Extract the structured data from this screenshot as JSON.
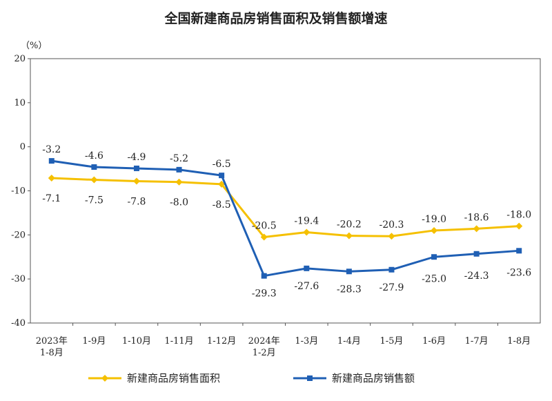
{
  "chart_data": {
    "type": "line",
    "title": "全国新建商品房销售面积及销售额增速",
    "unit_label": "（%）",
    "ylim": [
      -40,
      20
    ],
    "yticks": [
      "20",
      "10",
      "0",
      "-10",
      "-20",
      "-30",
      "-40"
    ],
    "categories": [
      [
        "2023年",
        "1-8月"
      ],
      [
        "1-9月"
      ],
      [
        "1-10月"
      ],
      [
        "1-11月"
      ],
      [
        "1-12月"
      ],
      [
        "2024年",
        "1-2月"
      ],
      [
        "1-3月"
      ],
      [
        "1-4月"
      ],
      [
        "1-5月"
      ],
      [
        "1-6月"
      ],
      [
        "1-7月"
      ],
      [
        "1-8月"
      ]
    ],
    "grid": false,
    "legend_position": "bottom",
    "series": [
      {
        "name": "新建商品房销售面积",
        "color": "#F5C000",
        "marker": "diamond",
        "label_position": "below-left-start",
        "values": [
          -7.1,
          -7.5,
          -7.8,
          -8.0,
          -8.5,
          -20.5,
          -19.4,
          -20.2,
          -20.3,
          -19.0,
          -18.6,
          -18.0
        ],
        "labels": [
          "-7.1",
          "-7.5",
          "-7.8",
          "-8.0",
          "-8.5",
          "-20.5",
          "-19.4",
          "-20.2",
          "-20.3",
          "-19.0",
          "-18.6",
          "-18.0"
        ]
      },
      {
        "name": "新建商品房销售额",
        "color": "#1F5FB4",
        "marker": "square",
        "values": [
          -3.2,
          -4.6,
          -4.9,
          -5.2,
          -6.5,
          -29.3,
          -27.6,
          -28.3,
          -27.9,
          -25.0,
          -24.3,
          -23.6
        ],
        "labels": [
          "-3.2",
          "-4.6",
          "-4.9",
          "-5.2",
          "-6.5",
          "-29.3",
          "-27.6",
          "-28.3",
          "-27.9",
          "-25.0",
          "-24.3",
          "-23.6"
        ]
      }
    ]
  }
}
